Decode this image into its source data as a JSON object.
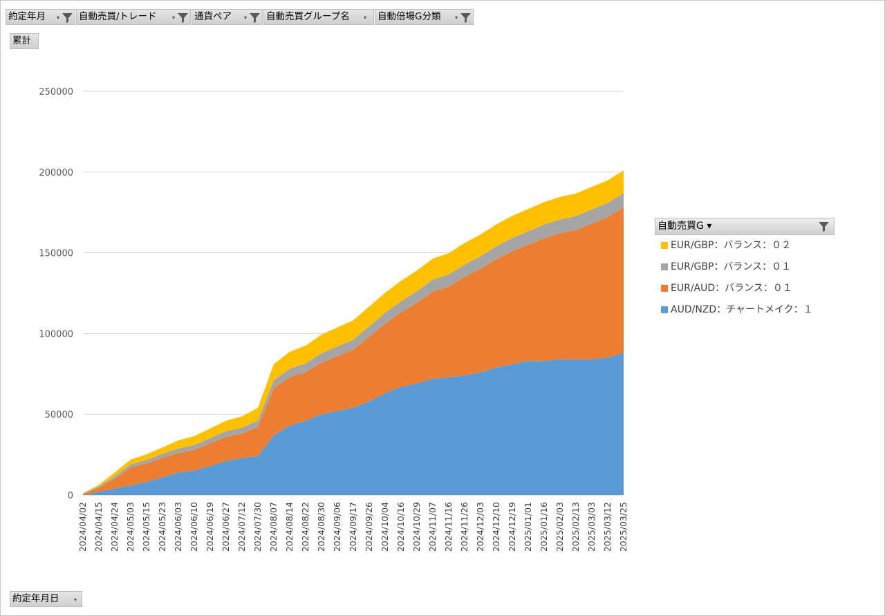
{
  "filters": [
    {
      "label": "約定年月",
      "has_filter": true
    },
    {
      "label": "自動売買/トレード",
      "has_filter": true
    },
    {
      "label": "通貨ペア",
      "has_filter": true
    },
    {
      "label": "自動売買グループ名",
      "has_filter": false
    },
    {
      "label": "自動倍場G分類",
      "has_filter": true
    }
  ],
  "value_button": "累計",
  "axis_button": "約定年月日",
  "legend": {
    "title": "自動売買G",
    "items": [
      {
        "label": "EUR/GBP：バランス：０２",
        "color": "#ffc000"
      },
      {
        "label": "EUR/GBP：バランス：０１",
        "color": "#a5a5a5"
      },
      {
        "label": "EUR/AUD：バランス：０１",
        "color": "#ed7d31"
      },
      {
        "label": "AUD/NZD：チャートメイク：１",
        "color": "#5b9bd5"
      }
    ]
  },
  "chart_data": {
    "type": "area",
    "stacked": true,
    "ylim": [
      0,
      250000
    ],
    "yticks": [
      "0",
      "50000",
      "100000",
      "150000",
      "200000",
      "250000"
    ],
    "grid": true,
    "legend_position": "right",
    "x": [
      "2024/04/02",
      "2024/04/15",
      "2024/04/24",
      "2024/05/03",
      "2024/05/15",
      "2024/05/23",
      "2024/06/03",
      "2024/06/10",
      "2024/06/19",
      "2024/06/27",
      "2024/07/12",
      "2024/07/30",
      "2024/08/07",
      "2024/08/14",
      "2024/08/22",
      "2024/08/30",
      "2024/09/06",
      "2024/09/17",
      "2024/09/26",
      "2024/10/04",
      "2024/10/16",
      "2024/10/29",
      "2024/11/07",
      "2024/11/16",
      "2024/11/26",
      "2024/12/03",
      "2024/12/10",
      "2024/12/19",
      "2025/01/01",
      "2025/01/16",
      "2025/02/03",
      "2025/02/13",
      "2025/03/03",
      "2025/03/12",
      "2025/03/25"
    ],
    "series": [
      {
        "name": "AUD/NZD：チャートメイク：１",
        "color": "#5b9bd5",
        "values": [
          0,
          2000,
          4000,
          6000,
          8000,
          11000,
          14000,
          15000,
          18000,
          21000,
          23000,
          24000,
          37000,
          43000,
          46000,
          50000,
          52000,
          54000,
          58000,
          63000,
          67000,
          69000,
          72000,
          73000,
          74000,
          76000,
          79000,
          81000,
          83000,
          83000,
          84000,
          84000,
          84000,
          85000,
          88000
        ]
      },
      {
        "name": "EUR/AUD：バランス：０１",
        "color": "#ed7d31",
        "values": [
          500,
          2500,
          6000,
          11000,
          11500,
          12000,
          12000,
          13000,
          14000,
          15000,
          15000,
          18000,
          29000,
          30000,
          30000,
          32000,
          34000,
          36000,
          40000,
          43000,
          46000,
          50000,
          54000,
          56000,
          61000,
          64000,
          67000,
          70000,
          72000,
          76000,
          78000,
          80000,
          84000,
          87000,
          90000
        ]
      },
      {
        "name": "EUR/GBP：バランス：０１",
        "color": "#a5a5a5",
        "values": [
          300,
          800,
          1500,
          2000,
          2200,
          2500,
          2800,
          3000,
          3200,
          3500,
          3700,
          4000,
          5000,
          5200,
          5500,
          5800,
          6000,
          6200,
          6500,
          6800,
          7000,
          7200,
          7400,
          7500,
          7700,
          7800,
          8000,
          8200,
          8300,
          8500,
          8600,
          8700,
          8800,
          8900,
          9000
        ]
      },
      {
        "name": "EUR/GBP：バランス：０２",
        "color": "#ffc000",
        "values": [
          300,
          1000,
          2500,
          3000,
          3500,
          4000,
          5000,
          5500,
          6000,
          6500,
          7000,
          8000,
          10000,
          10500,
          11000,
          11500,
          11800,
          12000,
          12200,
          12400,
          12600,
          12800,
          13000,
          13200,
          13400,
          13500,
          13600,
          13700,
          13800,
          13900,
          14000,
          14000,
          14000,
          14000,
          14000
        ]
      }
    ]
  }
}
